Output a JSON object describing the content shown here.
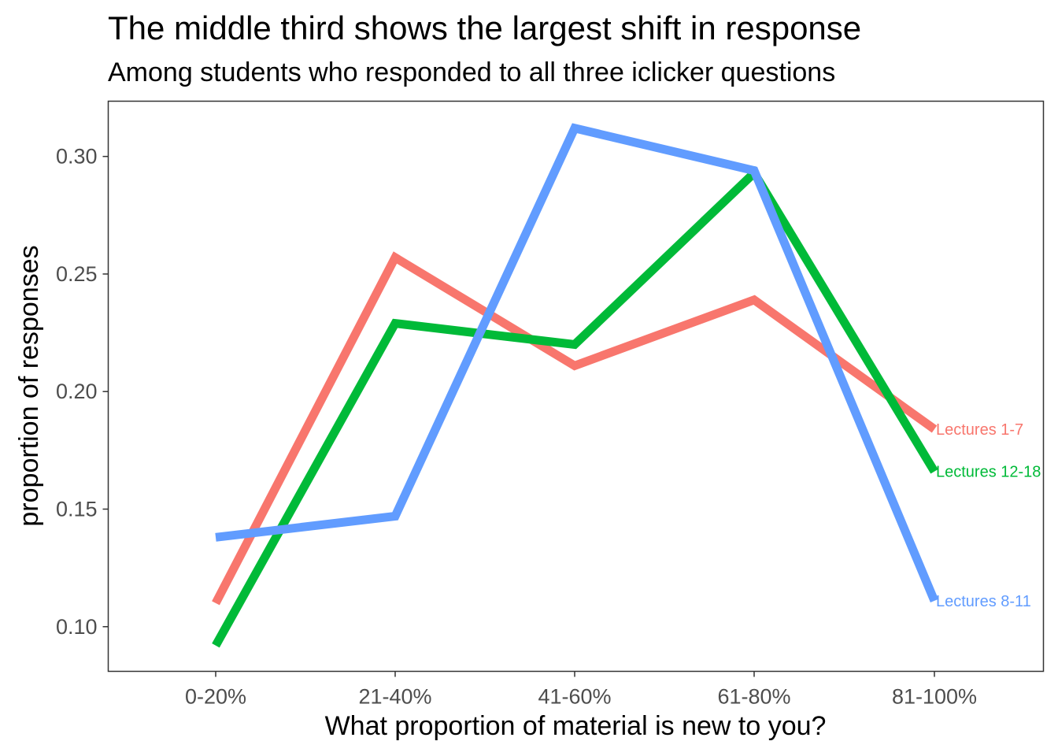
{
  "chart_data": {
    "type": "line",
    "title": "The middle third shows the largest shift in response",
    "subtitle": "Among students who responded to all three iclicker questions",
    "xlabel": "What proportion of material is new to you?",
    "ylabel": "proportion of responses",
    "categories": [
      "0-20%",
      "21-40%",
      "41-60%",
      "61-80%",
      "81-100%"
    ],
    "ylim": [
      0.081,
      0.3235
    ],
    "yticks": [
      0.1,
      0.15,
      0.2,
      0.25,
      0.3
    ],
    "ytick_labels": [
      "0.10",
      "0.15",
      "0.20",
      "0.25",
      "0.30"
    ],
    "grid": false,
    "legend": "none (direct line-end labels)",
    "series": [
      {
        "name": "Lectures 1-7",
        "color": "#F8766D",
        "values": [
          0.11,
          0.257,
          0.211,
          0.239,
          0.184
        ]
      },
      {
        "name": "Lectures 12-18",
        "color": "#00BA38",
        "values": [
          0.092,
          0.229,
          0.22,
          0.293,
          0.166
        ]
      },
      {
        "name": "Lectures 8-11",
        "color": "#619CFF",
        "values": [
          0.138,
          0.147,
          0.312,
          0.294,
          0.111
        ]
      }
    ]
  }
}
